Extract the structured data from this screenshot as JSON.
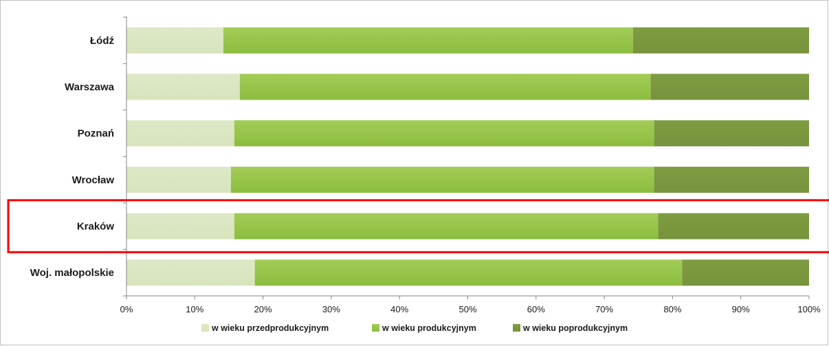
{
  "chart_data": {
    "type": "bar",
    "orientation": "horizontal",
    "stacked": "percent",
    "categories": [
      "Łódź",
      "Warszawa",
      "Poznań",
      "Wrocław",
      "Kraków",
      "Woj. małopolskie"
    ],
    "series": [
      {
        "name": "w wieku przedprodukcyjnym",
        "color": "#d8e4bc",
        "values": [
          14.2,
          16.6,
          15.8,
          15.3,
          15.8,
          18.8
        ]
      },
      {
        "name": "w wieku produkcyjnym",
        "color": "#8cbd3f",
        "values": [
          60.0,
          60.2,
          61.5,
          62.0,
          62.1,
          62.6
        ]
      },
      {
        "name": "w wieku poprodukcyjnym",
        "color": "#77933c",
        "values": [
          25.8,
          23.2,
          22.7,
          22.7,
          22.1,
          18.6
        ]
      }
    ],
    "x_ticks": [
      "0%",
      "10%",
      "20%",
      "30%",
      "40%",
      "50%",
      "60%",
      "70%",
      "80%",
      "90%",
      "100%"
    ],
    "xlim": [
      0,
      100
    ],
    "grid": false,
    "legend_position": "bottom",
    "highlighted_category": "Kraków",
    "highlight_color": "#ff0000"
  }
}
